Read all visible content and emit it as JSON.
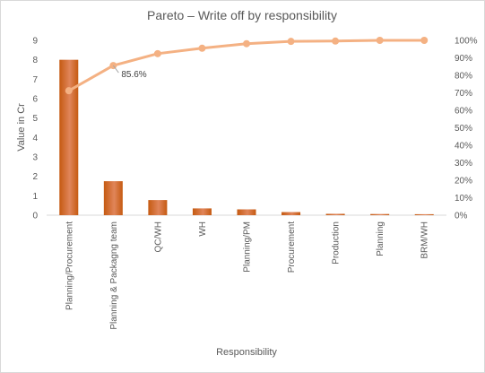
{
  "chart_data": {
    "type": "bar",
    "title": "Pareto – Write off by responsibility",
    "xlabel": "Responsibility",
    "ylabel": "Value in Cr",
    "categories": [
      "Planning/Procurement",
      "Planning & Packagng team",
      "QC/WH",
      "WH",
      "Planning/PM",
      "Procurement",
      "Production",
      "Planning",
      "BRM/WH"
    ],
    "series": [
      {
        "type": "bar",
        "axis": "left",
        "values": [
          8.0,
          1.75,
          0.78,
          0.35,
          0.3,
          0.16,
          0.07,
          0.06,
          0.05
        ]
      },
      {
        "type": "line",
        "axis": "right",
        "values": [
          71.2,
          85.6,
          92.4,
          95.5,
          98.1,
          99.4,
          99.6,
          100,
          100
        ]
      }
    ],
    "ylim": [
      0,
      9
    ],
    "y2lim": [
      0,
      100
    ],
    "yticks": [
      "0",
      "1",
      "2",
      "3",
      "4",
      "5",
      "6",
      "7",
      "8",
      "9"
    ],
    "y2ticks": [
      "0%",
      "10%",
      "20%",
      "30%",
      "40%",
      "50%",
      "60%",
      "70%",
      "80%",
      "90%",
      "100%"
    ],
    "annotations": [
      {
        "point_index": 1,
        "text": "85.6%"
      }
    ],
    "grid": false,
    "legend": "none",
    "colors": {
      "bar": "#C55A11",
      "bar_light": "#E0855A",
      "line": "#F4B183",
      "marker": "#F4B183",
      "axis_text": "#595959",
      "axis_line": "#d9d9d9"
    }
  }
}
